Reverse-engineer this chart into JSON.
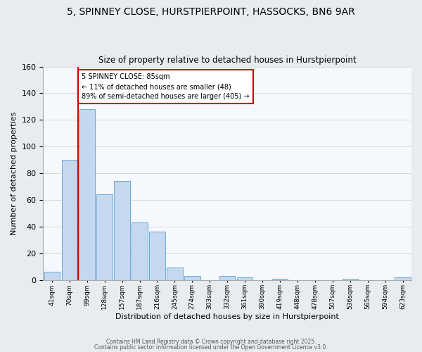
{
  "title": "5, SPINNEY CLOSE, HURSTPIERPOINT, HASSOCKS, BN6 9AR",
  "subtitle": "Size of property relative to detached houses in Hurstpierpoint",
  "xlabel": "Distribution of detached houses by size in Hurstpierpoint",
  "ylabel": "Number of detached properties",
  "categories": [
    "41sqm",
    "70sqm",
    "99sqm",
    "128sqm",
    "157sqm",
    "187sqm",
    "216sqm",
    "245sqm",
    "274sqm",
    "303sqm",
    "332sqm",
    "361sqm",
    "390sqm",
    "419sqm",
    "448sqm",
    "478sqm",
    "507sqm",
    "536sqm",
    "565sqm",
    "594sqm",
    "623sqm"
  ],
  "values": [
    6,
    90,
    128,
    64,
    74,
    43,
    36,
    9,
    3,
    0,
    3,
    2,
    0,
    1,
    0,
    0,
    0,
    1,
    0,
    0,
    2
  ],
  "bar_color": "#c5d8f0",
  "bar_edge_color": "#6aaad4",
  "marker_color": "#cc0000",
  "ylim": [
    0,
    160
  ],
  "yticks": [
    0,
    20,
    40,
    60,
    80,
    100,
    120,
    140,
    160
  ],
  "annotation_title": "5 SPINNEY CLOSE: 85sqm",
  "annotation_line1": "← 11% of detached houses are smaller (48)",
  "annotation_line2": "89% of semi-detached houses are larger (405) →",
  "footer1": "Contains HM Land Registry data © Crown copyright and database right 2025.",
  "footer2": "Contains public sector information licensed under the Open Government Licence v3.0.",
  "bg_color": "#e8ecf0",
  "plot_bg_color": "#f5f8fc",
  "title_fontsize": 10,
  "subtitle_fontsize": 8.5,
  "annotation_box_edge": "#cc0000"
}
